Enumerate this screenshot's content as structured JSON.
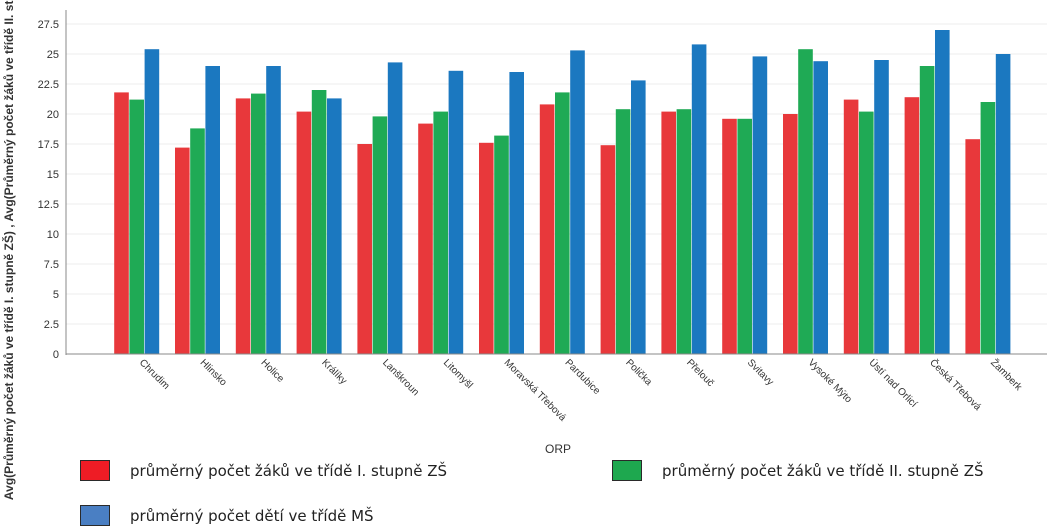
{
  "chart_data": {
    "type": "bar",
    "xlabel": "ORP",
    "ylabel": "Avg(Průměrný počet žáků ve třídě I. stupně ZŠ) , Avg(Průměrný počet žáků ve třídě II. stupně",
    "ylim": [
      0,
      28.5
    ],
    "yticks": [
      "0",
      "2.5",
      "5",
      "7.5",
      "10",
      "12.5",
      "15",
      "17.5",
      "20",
      "22.5",
      "25",
      "27.5"
    ],
    "categories": [
      "Chrudim",
      "Hlinsko",
      "Holice",
      "Králíky",
      "Lanškroun",
      "Litomyšl",
      "Moravská Třebová",
      "Pardubice",
      "Polička",
      "Přelouč",
      "Svitavy",
      "Vysoké Mýto",
      "Ústí nad Orlicí",
      "Česká Třebová",
      "Žamberk"
    ],
    "series": [
      {
        "name": "průměrný počet žáků ve třídě I. stupně ZŠ",
        "color": "#e8383b",
        "values": [
          21.8,
          17.2,
          21.3,
          20.2,
          17.5,
          19.2,
          17.6,
          20.8,
          17.4,
          20.2,
          19.6,
          20.0,
          21.2,
          21.4,
          17.9
        ]
      },
      {
        "name": "průměrný počet žáků ve třídě II. stupně ZŠ",
        "color": "#1faa55",
        "values": [
          21.2,
          18.8,
          21.7,
          22.0,
          19.8,
          20.2,
          18.2,
          21.8,
          20.4,
          20.4,
          19.6,
          25.4,
          20.2,
          24.0,
          21.0
        ]
      },
      {
        "name": "průměrný počet dětí ve třídě MŠ",
        "color": "#1b78c0",
        "values": [
          25.4,
          24.0,
          24.0,
          21.3,
          24.3,
          23.6,
          23.5,
          25.3,
          22.8,
          25.8,
          24.8,
          24.4,
          24.5,
          27.0,
          25.0
        ]
      }
    ]
  },
  "legend_colors": {
    "red": "#ee1c25",
    "green": "#1ea84f",
    "blue": "#4a7fc3"
  }
}
